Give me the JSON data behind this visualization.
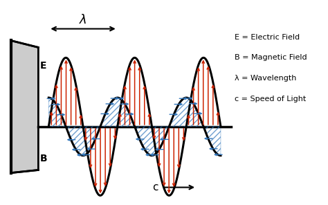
{
  "bg_color": "#ffffff",
  "wave_color": "#000000",
  "electric_color": "#cc2200",
  "magnetic_color": "#3377bb",
  "panel_color": "#cccccc",
  "panel_edge_color": "#000000",
  "legend_lines": [
    "E = Electric Field",
    "B = Magnetic Field",
    "λ = Wavelength",
    "c = Speed of Light"
  ],
  "figsize": [
    4.74,
    2.96
  ],
  "dpi": 100,
  "n_cycles": 2.5,
  "amp_E": 1.0,
  "amp_B": 0.42,
  "wavelength": 1.0
}
